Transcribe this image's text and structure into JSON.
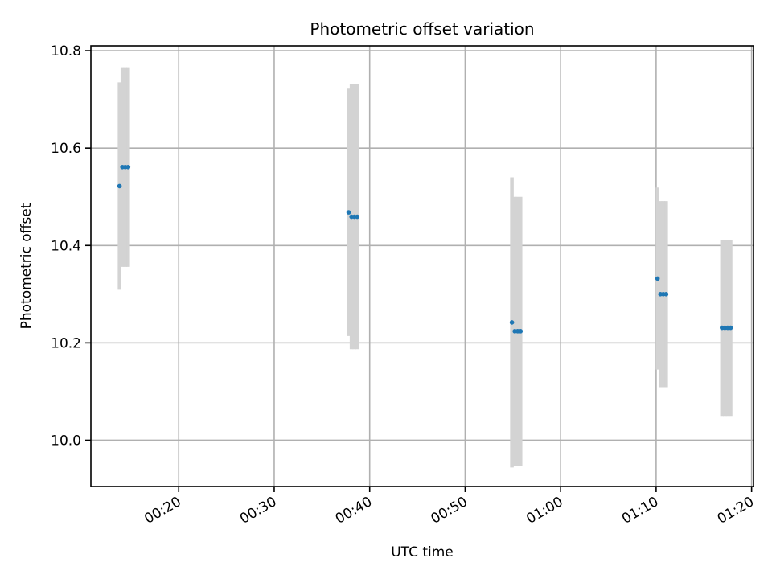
{
  "chart_data": {
    "type": "scatter",
    "title": "Photometric offset variation",
    "xlabel": "UTC time",
    "ylabel": "Photometric offset",
    "x_tick_labels": [
      "00:20",
      "00:30",
      "00:40",
      "00:50",
      "01:00",
      "01:10",
      "01:20"
    ],
    "y_tick_labels": [
      "10.0",
      "10.2",
      "10.4",
      "10.6",
      "10.8"
    ],
    "x_ticks_min": [
      20,
      30,
      40,
      50,
      60,
      70,
      80
    ],
    "y_ticks": [
      10.0,
      10.2,
      10.4,
      10.6,
      10.8
    ],
    "xlim_min": [
      10.8,
      80.2
    ],
    "ylim": [
      9.905,
      10.81
    ],
    "grid": true,
    "legend": "none",
    "colors": {
      "point": "#1f77b4",
      "errorbar": "#d3d3d3",
      "grid": "#b0b0b0"
    },
    "points": [
      {
        "t": 13.8,
        "y": 10.522,
        "err": 0.213
      },
      {
        "t": 14.1,
        "y": 10.561,
        "err": 0.205
      },
      {
        "t": 14.4,
        "y": 10.561,
        "err": 0.205
      },
      {
        "t": 14.7,
        "y": 10.561,
        "err": 0.205
      },
      {
        "t": 37.8,
        "y": 10.468,
        "err": 0.254
      },
      {
        "t": 38.1,
        "y": 10.459,
        "err": 0.272
      },
      {
        "t": 38.4,
        "y": 10.459,
        "err": 0.272
      },
      {
        "t": 38.7,
        "y": 10.459,
        "err": 0.272
      },
      {
        "t": 54.9,
        "y": 10.242,
        "err": 0.298
      },
      {
        "t": 55.2,
        "y": 10.224,
        "err": 0.276
      },
      {
        "t": 55.5,
        "y": 10.224,
        "err": 0.276
      },
      {
        "t": 55.8,
        "y": 10.224,
        "err": 0.276
      },
      {
        "t": 70.15,
        "y": 10.332,
        "err": 0.187
      },
      {
        "t": 70.45,
        "y": 10.3,
        "err": 0.191
      },
      {
        "t": 70.75,
        "y": 10.3,
        "err": 0.191
      },
      {
        "t": 71.05,
        "y": 10.3,
        "err": 0.191
      },
      {
        "t": 76.9,
        "y": 10.231,
        "err": 0.181
      },
      {
        "t": 77.2,
        "y": 10.231,
        "err": 0.181
      },
      {
        "t": 77.5,
        "y": 10.231,
        "err": 0.181
      },
      {
        "t": 77.8,
        "y": 10.231,
        "err": 0.181
      }
    ]
  }
}
